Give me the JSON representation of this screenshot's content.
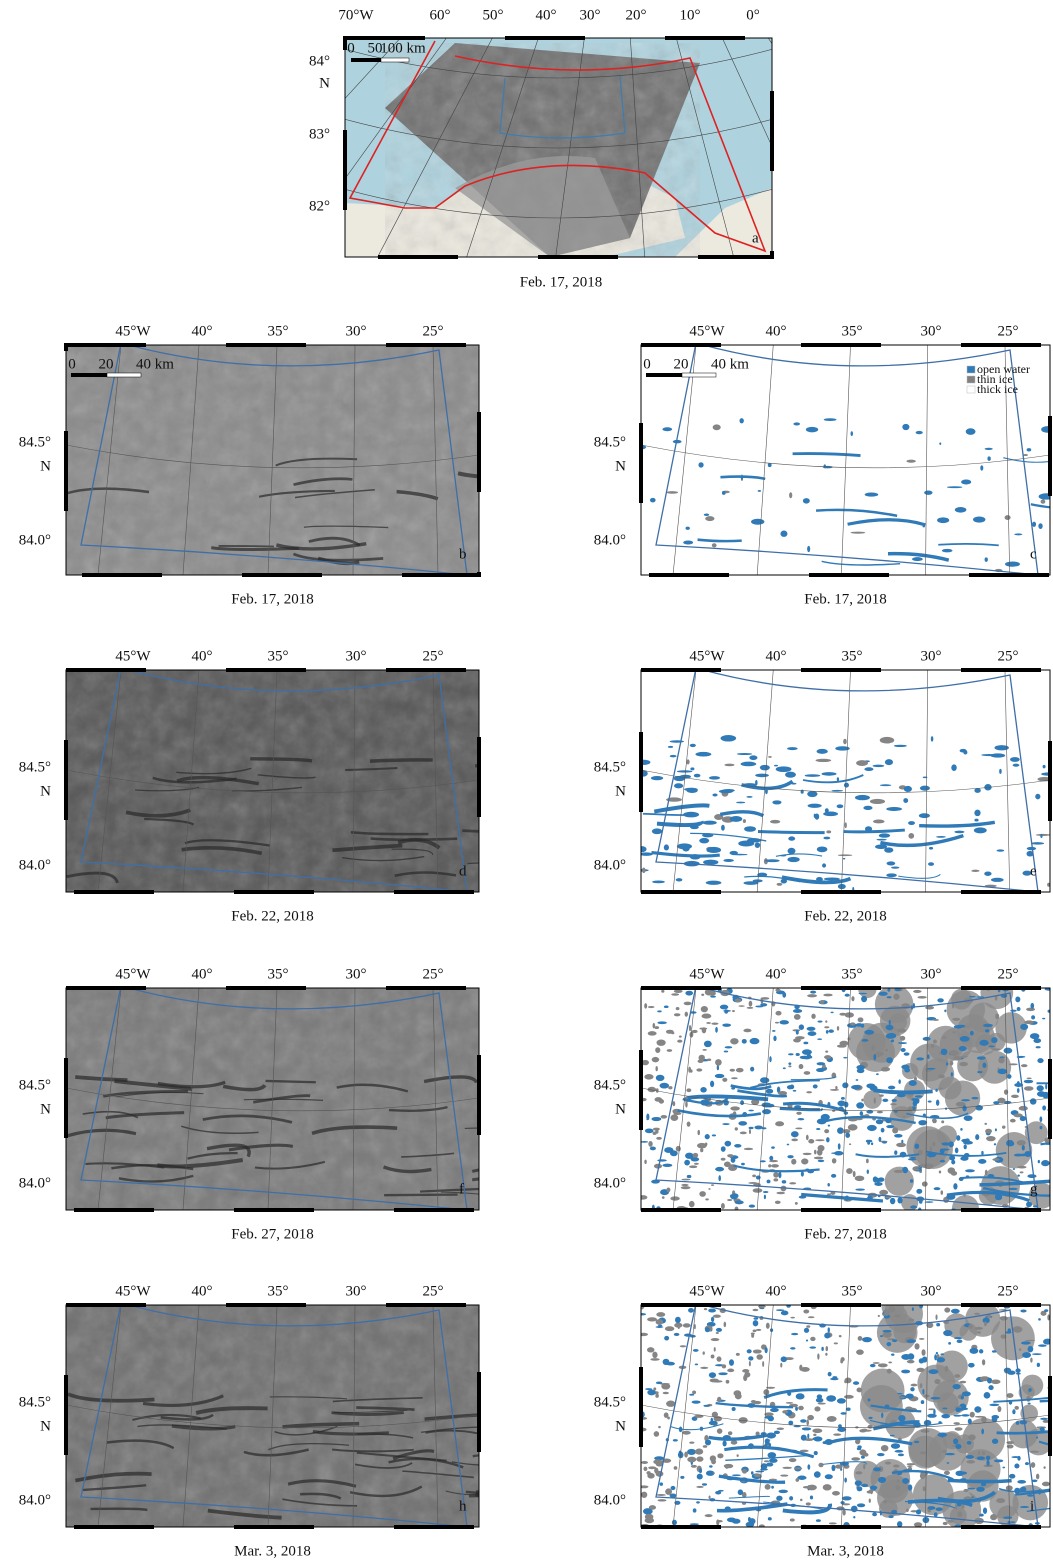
{
  "overview": {
    "lon_labels": [
      "70°W",
      "60°",
      "50°",
      "40°",
      "30°",
      "20°",
      "10°",
      "0°"
    ],
    "lat_labels": [
      "84°",
      "83°",
      "82°"
    ],
    "hemisphere": "N",
    "scale": [
      "0",
      "50",
      "100 km"
    ],
    "letter": "a",
    "caption": "Feb. 17, 2018"
  },
  "grid_labels": {
    "lon": [
      "45°W",
      "40°",
      "35°",
      "30°",
      "25°"
    ],
    "lat": [
      "84.5°",
      "84.0°"
    ],
    "hemisphere": "N"
  },
  "panels": [
    {
      "letter": "b",
      "caption": "Feb. 17, 2018",
      "scale": [
        "0",
        "20",
        "40 km"
      ]
    },
    {
      "letter": "c",
      "caption": "Feb. 17, 2018",
      "scale": [
        "0",
        "20",
        "40 km"
      ],
      "legend": [
        "open water",
        "thin ice",
        "thick ice"
      ]
    },
    {
      "letter": "d",
      "caption": "Feb. 22, 2018"
    },
    {
      "letter": "e",
      "caption": "Feb. 22, 2018"
    },
    {
      "letter": "f",
      "caption": "Feb. 27, 2018"
    },
    {
      "letter": "g",
      "caption": "Feb. 27, 2018"
    },
    {
      "letter": "h",
      "caption": "Mar. 3, 2018"
    },
    {
      "letter": "i",
      "caption": "Mar. 3, 2018"
    }
  ]
}
